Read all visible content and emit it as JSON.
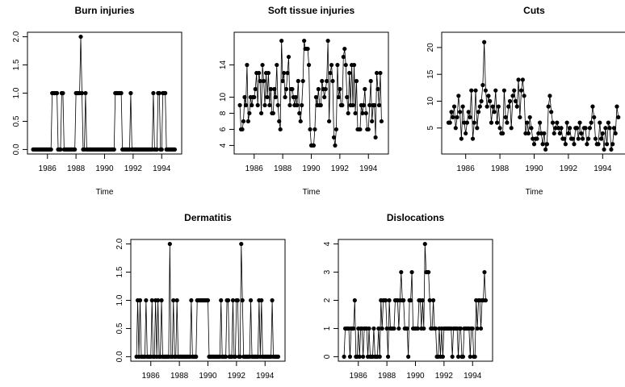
{
  "chart_data": [
    {
      "type": "line",
      "title": "Burn injuries",
      "xlabel": "Time",
      "ylabel": "",
      "x_start": 1985,
      "x_step_months": 1,
      "xlim": [
        1985,
        1995
      ],
      "ylim": [
        0,
        2
      ],
      "x_ticks": [
        "1986",
        "1988",
        "1990",
        "1992",
        "1994"
      ],
      "y_ticks": [
        "0.0",
        "0.5",
        "1.0",
        "1.5",
        "2.0"
      ],
      "values": [
        0,
        0,
        0,
        0,
        0,
        0,
        0,
        0,
        0,
        0,
        0,
        0,
        0,
        0,
        0,
        0,
        1,
        1,
        1,
        1,
        1,
        0,
        0,
        0,
        1,
        1,
        0,
        0,
        0,
        0,
        0,
        0,
        0,
        0,
        0,
        0,
        1,
        1,
        1,
        1,
        2,
        1,
        0,
        0,
        1,
        0,
        0,
        0,
        0,
        0,
        0,
        0,
        0,
        0,
        0,
        0,
        0,
        0,
        0,
        0,
        0,
        0,
        0,
        0,
        0,
        0,
        0,
        0,
        0,
        1,
        1,
        1,
        1,
        1,
        1,
        0,
        0,
        0,
        0,
        0,
        0,
        0,
        1,
        0,
        0,
        0,
        0,
        0,
        0,
        0,
        0,
        0,
        0,
        0,
        0,
        0,
        0,
        0,
        0,
        0,
        0,
        1,
        0,
        0,
        0,
        1,
        1,
        0,
        0,
        1,
        1,
        1,
        0,
        0,
        0,
        0,
        0,
        0,
        0,
        0
      ]
    },
    {
      "type": "line",
      "title": "Soft tissue injuries",
      "xlabel": "Time",
      "ylabel": "",
      "x_start": 1985,
      "x_step_months": 1,
      "xlim": [
        1985,
        1995
      ],
      "ylim": [
        3.5,
        17.5
      ],
      "x_ticks": [
        "1986",
        "1988",
        "1990",
        "1992",
        "1994"
      ],
      "y_ticks": [
        "4",
        "6",
        "8",
        "10",
        "14"
      ],
      "values": [
        9,
        6,
        6,
        7,
        10,
        9,
        14,
        7,
        8,
        10,
        9,
        10,
        10,
        11,
        13,
        9,
        13,
        12,
        8,
        14,
        12,
        9,
        13,
        10,
        13,
        9,
        11,
        8,
        8,
        11,
        10,
        14,
        9,
        7,
        6,
        17,
        12,
        13,
        10,
        11,
        13,
        15,
        9,
        11,
        11,
        10,
        9,
        10,
        9,
        12,
        8,
        7,
        9,
        12,
        17,
        16,
        16,
        16,
        14,
        6,
        4,
        4,
        4,
        6,
        10,
        9,
        11,
        9,
        9,
        12,
        11,
        10,
        11,
        12,
        17,
        7,
        13,
        14,
        12,
        5,
        4,
        6,
        14,
        10,
        11,
        9,
        9,
        15,
        16,
        14,
        10,
        8,
        13,
        9,
        14,
        9,
        14,
        8,
        12,
        6,
        6,
        6,
        9,
        8,
        9,
        11,
        8,
        6,
        6,
        9,
        12,
        7,
        9,
        9,
        5,
        13,
        11,
        9,
        13,
        7
      ]
    },
    {
      "type": "line",
      "title": "Cuts",
      "xlabel": "Time",
      "ylabel": "",
      "x_start": 1985,
      "x_step_months": 1,
      "xlim": [
        1985,
        1995
      ],
      "ylim": [
        1,
        22
      ],
      "x_ticks": [
        "1986",
        "1988",
        "1990",
        "1992",
        "1994"
      ],
      "y_ticks": [
        "5",
        "10",
        "15",
        "20"
      ],
      "values": [
        6,
        6,
        8,
        7,
        9,
        5,
        7,
        11,
        8,
        3,
        9,
        6,
        4,
        6,
        8,
        7,
        12,
        3,
        6,
        12,
        5,
        8,
        9,
        10,
        13,
        21,
        12,
        9,
        11,
        10,
        6,
        9,
        8,
        12,
        6,
        9,
        5,
        4,
        4,
        12,
        7,
        6,
        9,
        10,
        5,
        11,
        12,
        10,
        9,
        14,
        7,
        12,
        14,
        11,
        4,
        6,
        4,
        7,
        5,
        3,
        2,
        3,
        3,
        4,
        6,
        4,
        2,
        4,
        1,
        2,
        9,
        11,
        8,
        6,
        4,
        5,
        6,
        5,
        4,
        5,
        3,
        3,
        2,
        6,
        4,
        5,
        3,
        3,
        2,
        5,
        5,
        3,
        6,
        4,
        3,
        5,
        5,
        2,
        3,
        5,
        6,
        9,
        7,
        3,
        2,
        2,
        6,
        3,
        4,
        1,
        5,
        2,
        6,
        5,
        1,
        2,
        5,
        4,
        9,
        7
      ]
    },
    {
      "type": "line",
      "title": "Dermatitis",
      "xlabel": "Time",
      "ylabel": "",
      "x_start": 1985,
      "x_step_months": 1,
      "xlim": [
        1985,
        1995
      ],
      "ylim": [
        0,
        2
      ],
      "x_ticks": [
        "1986",
        "1988",
        "1990",
        "1992",
        "1994"
      ],
      "y_ticks": [
        "0.0",
        "0.5",
        "1.0",
        "1.5",
        "2.0"
      ],
      "values": [
        0,
        1,
        0,
        1,
        0,
        0,
        0,
        0,
        1,
        0,
        0,
        0,
        0,
        1,
        0,
        0,
        1,
        0,
        1,
        0,
        0,
        1,
        0,
        0,
        0,
        0,
        0,
        0,
        2,
        0,
        0,
        1,
        0,
        0,
        1,
        0,
        0,
        0,
        0,
        0,
        0,
        0,
        0,
        0,
        0,
        0,
        1,
        0,
        0,
        0,
        0,
        1,
        1,
        1,
        1,
        1,
        1,
        1,
        1,
        1,
        1,
        0,
        0,
        0,
        0,
        0,
        0,
        0,
        0,
        0,
        0,
        1,
        0,
        0,
        0,
        0,
        1,
        1,
        0,
        0,
        0,
        1,
        0,
        0,
        1,
        1,
        0,
        0,
        2,
        1,
        0,
        0,
        0,
        0,
        0,
        0,
        1,
        0,
        0,
        0,
        0,
        0,
        0,
        1,
        0,
        1,
        0,
        0,
        0,
        0,
        0,
        0,
        0,
        0,
        1,
        0,
        0,
        0,
        0,
        0
      ]
    },
    {
      "type": "line",
      "title": "Dislocations",
      "xlabel": "Time",
      "ylabel": "",
      "x_start": 1985,
      "x_step_months": 1,
      "xlim": [
        1985,
        1995
      ],
      "ylim": [
        0,
        4
      ],
      "x_ticks": [
        "1986",
        "1988",
        "1990",
        "1992",
        "1994"
      ],
      "y_ticks": [
        "0",
        "1",
        "2",
        "3",
        "4"
      ],
      "values": [
        0,
        1,
        1,
        1,
        1,
        0,
        1,
        1,
        1,
        2,
        0,
        0,
        1,
        0,
        1,
        1,
        0,
        1,
        1,
        1,
        0,
        1,
        0,
        0,
        0,
        1,
        0,
        0,
        0,
        1,
        0,
        2,
        1,
        2,
        2,
        2,
        1,
        0,
        2,
        1,
        1,
        1,
        1,
        2,
        2,
        2,
        1,
        2,
        3,
        2,
        2,
        1,
        1,
        1,
        0,
        2,
        2,
        3,
        1,
        1,
        1,
        1,
        1,
        2,
        2,
        1,
        2,
        1,
        4,
        3,
        3,
        3,
        2,
        1,
        1,
        2,
        1,
        1,
        0,
        0,
        1,
        0,
        1,
        0,
        1,
        1,
        1,
        1,
        1,
        1,
        1,
        0,
        1,
        1,
        1,
        1,
        0,
        1,
        1,
        0,
        0,
        1,
        1,
        1,
        1,
        1,
        0,
        1,
        1,
        0,
        0,
        2,
        1,
        2,
        2,
        1,
        2,
        2,
        3,
        2
      ]
    }
  ]
}
